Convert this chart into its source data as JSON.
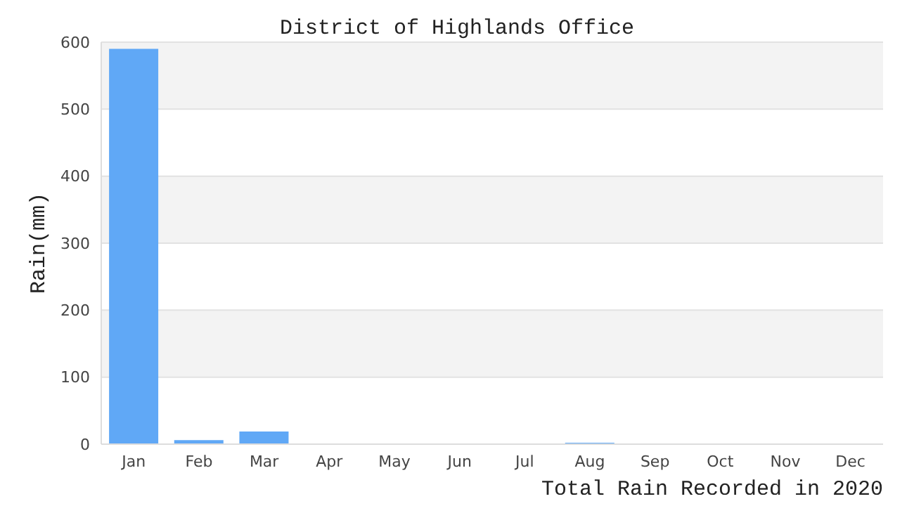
{
  "chart_data": {
    "type": "bar",
    "title": "District of Highlands Office",
    "xlabel": "Total Rain Recorded in 2020",
    "ylabel": "Rain(mm)",
    "categories": [
      "Jan",
      "Feb",
      "Mar",
      "Apr",
      "May",
      "Jun",
      "Jul",
      "Aug",
      "Sep",
      "Oct",
      "Nov",
      "Dec"
    ],
    "values": [
      590,
      6,
      19,
      0,
      0,
      0,
      0,
      2,
      0,
      0,
      0,
      0
    ],
    "color": "#60a8f6",
    "ylim": [
      0,
      600
    ],
    "yticks": [
      0,
      100,
      200,
      300,
      400,
      500,
      600
    ],
    "grid": "y"
  }
}
